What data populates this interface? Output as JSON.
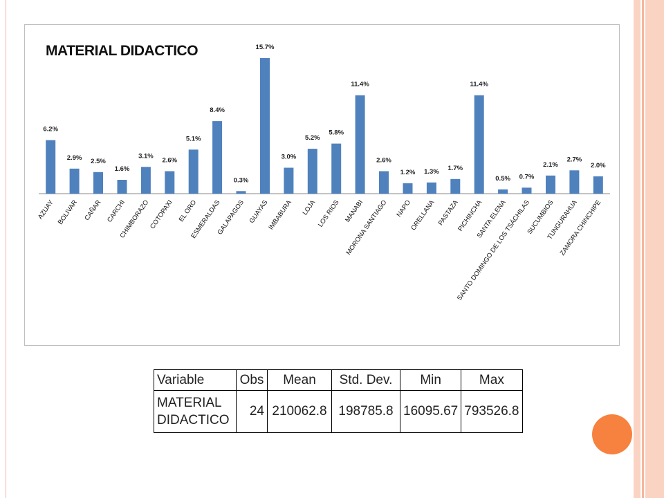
{
  "chart_data": {
    "type": "bar",
    "title": "MATERIAL DIDACTICO",
    "categories": [
      "AZUAY",
      "BOLIVAR",
      "CAÑAR",
      "CARCHI",
      "CHIMBORAZO",
      "COTOPAXI",
      "EL ORO",
      "ESMERALDAS",
      "GALAPAGOS",
      "GUAYAS",
      "IMBABURA",
      "LOJA",
      "LOS RIOS",
      "MANABI",
      "MORONA SANTIAGO",
      "NAPO",
      "ORELLANA",
      "PASTAZA",
      "PICHINCHA",
      "SANTA ELENA",
      "SANTO DOMINGO DE LOS TSÁCHILAS",
      "SUCUMBIOS",
      "TUNGURAHUA",
      "ZAMORA CHINCHIPE"
    ],
    "values": [
      6.2,
      2.9,
      2.5,
      1.6,
      3.1,
      2.6,
      5.1,
      8.4,
      0.3,
      15.7,
      3.0,
      5.2,
      5.8,
      11.4,
      2.6,
      1.2,
      1.3,
      1.7,
      11.4,
      0.5,
      0.7,
      2.1,
      2.7,
      2.0
    ],
    "data_labels": [
      "6.2%",
      "2.9%",
      "2.5%",
      "1.6%",
      "3.1%",
      "2.6%",
      "5.1%",
      "8.4%",
      "0.3%",
      "15.7%",
      "3.0%",
      "5.2%",
      "5.8%",
      "11.4%",
      "2.6%",
      "1.2%",
      "1.3%",
      "1.7%",
      "11.4%",
      "0.5%",
      "0.7%",
      "2.1%",
      "2.7%",
      "2.0%"
    ],
    "bar_color": "#4f81bd",
    "ylim": [
      0,
      15.7
    ],
    "grid": false,
    "legend": "none"
  },
  "stats_table": {
    "headers": [
      "Variable",
      "Obs",
      "Mean",
      "Std. Dev.",
      "Min",
      "Max"
    ],
    "row": {
      "variable_line1": "MATERIAL",
      "variable_line2": "DIDACTICO",
      "obs": "24",
      "mean": "210062.8",
      "std_dev": "198785.8",
      "min": "16095.67",
      "max": "793526.8"
    }
  },
  "colors": {
    "accent_circle": "#f7813f",
    "stripe": "#fbd3c2"
  }
}
